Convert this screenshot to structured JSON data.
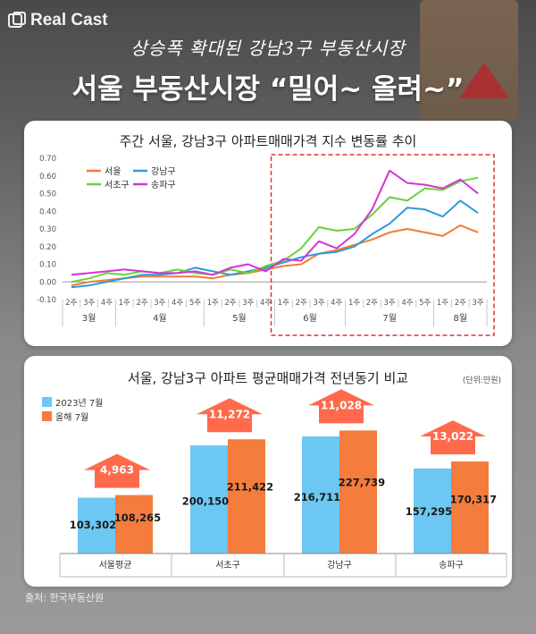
{
  "brand": {
    "name": "Real Cast"
  },
  "header": {
    "subtitle": "상승폭 확대된 강남3구 부동산시장",
    "title": "서울 부동산시장 “밀어~ 올려~”"
  },
  "source": "출처: 한국부동산원",
  "colors": {
    "seoul": "#f47c2f",
    "gangnam": "#2b9bdb",
    "seocho": "#6bd13c",
    "songpa": "#d633d6",
    "bar_prev": "#6cc7f2",
    "bar_curr": "#f47c3c",
    "arrow": "#ff5a3a",
    "highlight": "#e03030"
  },
  "chart_data": [
    {
      "type": "line",
      "title": "주간 서울, 강남3구 아파트매매가격 지수 변동률 추이",
      "ylim": [
        -0.1,
        0.7
      ],
      "y_ticks": [
        "0.70",
        "0.60",
        "0.50",
        "0.40",
        "0.30",
        "0.20",
        "0.10",
        "0.00",
        "-0.10"
      ],
      "x_weeks": [
        "2주",
        "3주",
        "4주",
        "1주",
        "2주",
        "3주",
        "4주",
        "5주",
        "1주",
        "2주",
        "3주",
        "4주",
        "1주",
        "2주",
        "3주",
        "4주",
        "1주",
        "2주",
        "3주",
        "4주",
        "5주",
        "1주",
        "2주",
        "3주"
      ],
      "months": [
        {
          "label": "3월",
          "start": 0,
          "count": 3
        },
        {
          "label": "4월",
          "start": 3,
          "count": 5
        },
        {
          "label": "5월",
          "start": 8,
          "count": 4
        },
        {
          "label": "6월",
          "start": 12,
          "count": 4
        },
        {
          "label": "7월",
          "start": 16,
          "count": 5
        },
        {
          "label": "8월",
          "start": 21,
          "count": 3
        }
      ],
      "legend": [
        "서울",
        "강남구",
        "서초구",
        "송파구"
      ],
      "series": [
        {
          "name": "서울",
          "color_key": "seoul",
          "values": [
            -0.02,
            0.0,
            0.01,
            0.02,
            0.03,
            0.03,
            0.03,
            0.03,
            0.02,
            0.04,
            0.05,
            0.07,
            0.09,
            0.1,
            0.16,
            0.18,
            0.21,
            0.24,
            0.28,
            0.3,
            0.28,
            0.26,
            0.32,
            0.28
          ]
        },
        {
          "name": "강남구",
          "color_key": "gangnam",
          "values": [
            -0.03,
            -0.02,
            0.0,
            0.02,
            0.04,
            0.04,
            0.05,
            0.08,
            0.06,
            0.04,
            0.06,
            0.08,
            0.11,
            0.14,
            0.16,
            0.17,
            0.2,
            0.27,
            0.33,
            0.42,
            0.41,
            0.37,
            0.46,
            0.39
          ]
        },
        {
          "name": "서초구",
          "color_key": "seocho",
          "values": [
            0.0,
            0.02,
            0.05,
            0.04,
            0.06,
            0.05,
            0.07,
            0.05,
            0.04,
            0.07,
            0.05,
            0.09,
            0.12,
            0.19,
            0.31,
            0.29,
            0.3,
            0.38,
            0.48,
            0.46,
            0.53,
            0.52,
            0.57,
            0.59
          ]
        },
        {
          "name": "송파구",
          "color_key": "songpa",
          "values": [
            0.04,
            0.05,
            0.06,
            0.07,
            0.06,
            0.05,
            0.05,
            0.06,
            0.04,
            0.08,
            0.1,
            0.06,
            0.13,
            0.12,
            0.23,
            0.19,
            0.27,
            0.41,
            0.63,
            0.56,
            0.55,
            0.53,
            0.58,
            0.5
          ]
        }
      ],
      "highlight_range": [
        "6월 1주",
        "8월 3주"
      ]
    },
    {
      "type": "bar",
      "title": "서울, 강남3구 아파트 평균매매가격 전년동기 비교",
      "unit": "(단위:만원)",
      "categories": [
        "서울평균",
        "서초구",
        "강남구",
        "송파구"
      ],
      "series": [
        {
          "name": "2023년 7월",
          "color_key": "bar_prev",
          "values": [
            103302,
            200150,
            216711,
            157295
          ]
        },
        {
          "name": "올해 7월",
          "color_key": "bar_curr",
          "values": [
            108265,
            211422,
            227739,
            170317
          ]
        }
      ],
      "value_labels_prev": [
        "103,302",
        "200,150",
        "216,711",
        "157,295"
      ],
      "value_labels_curr": [
        "108,265",
        "211,422",
        "227,739",
        "170,317"
      ],
      "increase_labels": [
        "4,963",
        "11,272",
        "11,028",
        "13,022"
      ],
      "ylim": [
        0,
        240000
      ]
    }
  ]
}
